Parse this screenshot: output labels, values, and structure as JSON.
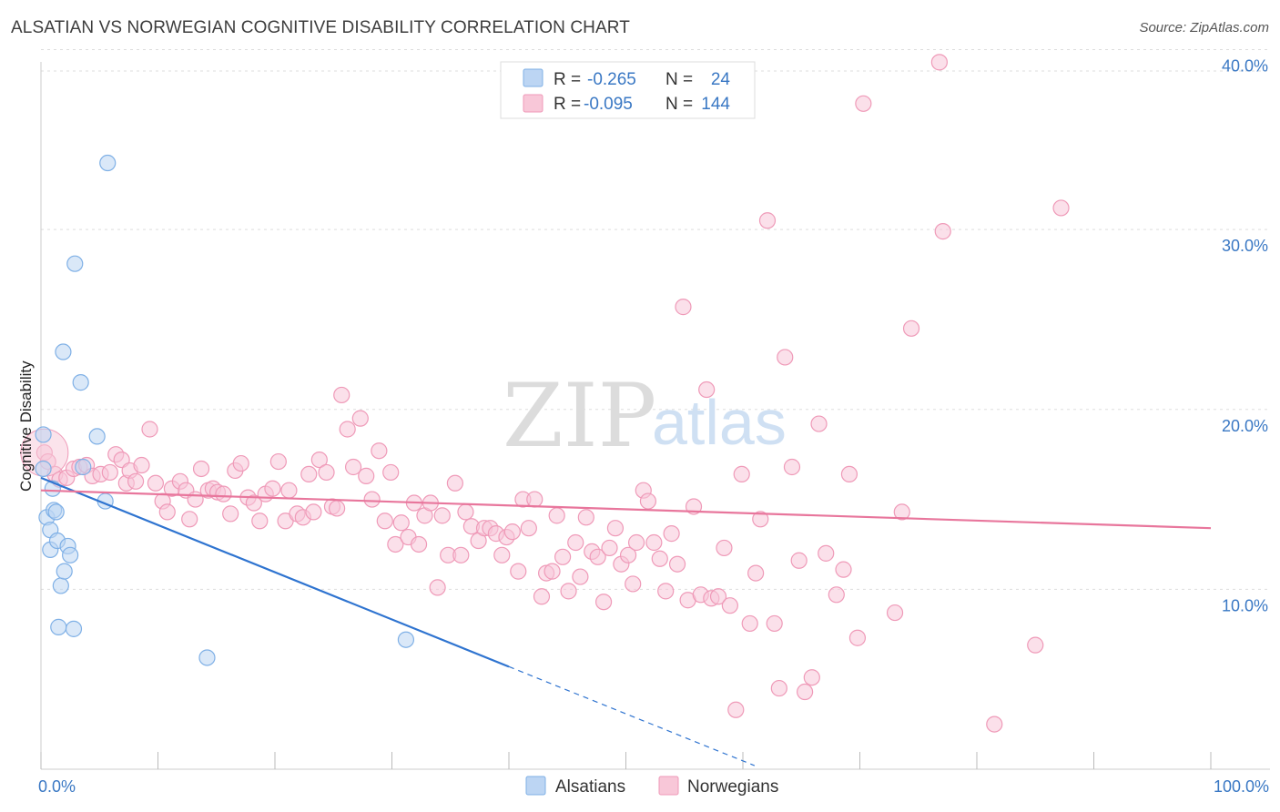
{
  "title": "ALSATIAN VS NORWEGIAN COGNITIVE DISABILITY CORRELATION CHART",
  "source": "Source: ZipAtlas.com",
  "watermark": {
    "zip": "ZIP",
    "atlas": "atlas"
  },
  "chart_data": {
    "type": "scatter",
    "xlabel": "",
    "ylabel": "Cognitive Disability",
    "xlim": [
      0,
      100
    ],
    "ylim": [
      0,
      42
    ],
    "x_tick_labels": {
      "min": "0.0%",
      "max": "100.0%"
    },
    "y_ticks": [
      {
        "value": 10,
        "label": "10.0%"
      },
      {
        "value": 20,
        "label": "20.0%"
      },
      {
        "value": 30,
        "label": "30.0%"
      },
      {
        "value": 40,
        "label": "40.0%"
      }
    ],
    "legend": [
      {
        "name": "Alsatians",
        "R_label": "R =",
        "R": "-0.265",
        "N_label": "N =",
        "N": "24",
        "color": "#7fb0e6",
        "fill": "#bcd5f3"
      },
      {
        "name": "Norwegians",
        "R_label": "R =",
        "R": "-0.095",
        "N_label": "N =",
        "N": "144",
        "color": "#ef9ab8",
        "fill": "#f8c7d8"
      }
    ],
    "series": [
      {
        "name": "Alsatians",
        "color": "#7fb0e6",
        "trend": {
          "x0": 0,
          "y0": 16.2,
          "x1": 40,
          "y1": 5.7,
          "dash_x1": 61,
          "dash_y1": 0.2,
          "color": "#2f74d0"
        },
        "points": [
          [
            0.2,
            18.6
          ],
          [
            0.2,
            16.7
          ],
          [
            0.5,
            14.0
          ],
          [
            0.8,
            12.2
          ],
          [
            0.8,
            13.3
          ],
          [
            1.0,
            15.6
          ],
          [
            1.1,
            14.4
          ],
          [
            1.3,
            14.3
          ],
          [
            1.4,
            12.7
          ],
          [
            1.5,
            7.9
          ],
          [
            1.7,
            10.2
          ],
          [
            1.9,
            23.2
          ],
          [
            2.0,
            11.0
          ],
          [
            2.3,
            12.4
          ],
          [
            2.5,
            11.9
          ],
          [
            2.8,
            7.8
          ],
          [
            2.9,
            28.1
          ],
          [
            3.4,
            21.5
          ],
          [
            3.6,
            16.8
          ],
          [
            4.8,
            18.5
          ],
          [
            5.5,
            14.9
          ],
          [
            5.7,
            33.7
          ],
          [
            14.2,
            6.2
          ],
          [
            31.2,
            7.2
          ]
        ]
      },
      {
        "name": "Norwegians",
        "color": "#ef9ab8",
        "trend": {
          "x0": 0,
          "y0": 15.5,
          "x1": 100,
          "y1": 13.4,
          "color": "#e8769c"
        },
        "points": [
          [
            0.3,
            17.6
          ],
          [
            0.6,
            17.1
          ],
          [
            1.2,
            16.4
          ],
          [
            1.6,
            16.1
          ],
          [
            2.2,
            16.2
          ],
          [
            2.8,
            16.7
          ],
          [
            3.3,
            16.8
          ],
          [
            3.9,
            16.9
          ],
          [
            4.4,
            16.3
          ],
          [
            5.1,
            16.4
          ],
          [
            5.9,
            16.5
          ],
          [
            6.4,
            17.5
          ],
          [
            6.9,
            17.2
          ],
          [
            7.3,
            15.9
          ],
          [
            7.6,
            16.6
          ],
          [
            8.1,
            16.0
          ],
          [
            8.6,
            16.9
          ],
          [
            9.3,
            18.9
          ],
          [
            9.8,
            15.9
          ],
          [
            10.4,
            14.9
          ],
          [
            10.8,
            14.3
          ],
          [
            11.2,
            15.6
          ],
          [
            11.9,
            16.0
          ],
          [
            12.4,
            15.5
          ],
          [
            12.7,
            13.9
          ],
          [
            13.2,
            15.0
          ],
          [
            13.7,
            16.7
          ],
          [
            14.3,
            15.5
          ],
          [
            14.7,
            15.6
          ],
          [
            15.1,
            15.4
          ],
          [
            15.6,
            15.3
          ],
          [
            16.2,
            14.2
          ],
          [
            16.6,
            16.6
          ],
          [
            17.1,
            17.0
          ],
          [
            17.7,
            15.1
          ],
          [
            18.2,
            14.8
          ],
          [
            18.7,
            13.8
          ],
          [
            19.2,
            15.3
          ],
          [
            19.8,
            15.6
          ],
          [
            20.3,
            17.1
          ],
          [
            20.9,
            13.8
          ],
          [
            21.2,
            15.5
          ],
          [
            21.9,
            14.2
          ],
          [
            22.4,
            14.0
          ],
          [
            22.9,
            16.4
          ],
          [
            23.3,
            14.3
          ],
          [
            23.8,
            17.2
          ],
          [
            24.4,
            16.5
          ],
          [
            24.9,
            14.6
          ],
          [
            25.3,
            14.5
          ],
          [
            25.7,
            20.8
          ],
          [
            26.2,
            18.9
          ],
          [
            26.7,
            16.8
          ],
          [
            27.3,
            19.5
          ],
          [
            27.8,
            16.3
          ],
          [
            28.3,
            15.0
          ],
          [
            28.9,
            17.7
          ],
          [
            29.4,
            13.8
          ],
          [
            29.9,
            16.5
          ],
          [
            30.3,
            12.5
          ],
          [
            30.8,
            13.7
          ],
          [
            31.4,
            12.9
          ],
          [
            31.9,
            14.8
          ],
          [
            32.3,
            12.5
          ],
          [
            32.8,
            14.1
          ],
          [
            33.3,
            14.8
          ],
          [
            33.9,
            10.1
          ],
          [
            34.3,
            14.1
          ],
          [
            34.8,
            11.9
          ],
          [
            35.4,
            15.9
          ],
          [
            35.9,
            11.9
          ],
          [
            36.3,
            14.3
          ],
          [
            36.8,
            13.5
          ],
          [
            37.4,
            12.7
          ],
          [
            37.9,
            13.4
          ],
          [
            38.4,
            13.4
          ],
          [
            38.9,
            13.1
          ],
          [
            39.4,
            11.9
          ],
          [
            39.8,
            12.9
          ],
          [
            40.3,
            13.2
          ],
          [
            40.8,
            11.0
          ],
          [
            41.2,
            15.0
          ],
          [
            41.7,
            13.4
          ],
          [
            42.2,
            15.0
          ],
          [
            42.8,
            9.6
          ],
          [
            43.2,
            10.9
          ],
          [
            43.7,
            11.0
          ],
          [
            44.1,
            14.1
          ],
          [
            44.6,
            11.8
          ],
          [
            45.1,
            9.9
          ],
          [
            45.7,
            12.6
          ],
          [
            46.1,
            10.7
          ],
          [
            46.6,
            14.0
          ],
          [
            47.1,
            12.1
          ],
          [
            47.6,
            11.8
          ],
          [
            48.1,
            9.3
          ],
          [
            48.6,
            12.3
          ],
          [
            49.1,
            13.4
          ],
          [
            49.6,
            11.4
          ],
          [
            50.2,
            11.9
          ],
          [
            50.6,
            10.3
          ],
          [
            50.9,
            12.6
          ],
          [
            51.5,
            15.5
          ],
          [
            51.9,
            14.9
          ],
          [
            52.4,
            12.6
          ],
          [
            52.9,
            11.7
          ],
          [
            53.4,
            9.9
          ],
          [
            53.9,
            13.1
          ],
          [
            54.4,
            11.4
          ],
          [
            54.9,
            25.7
          ],
          [
            55.3,
            9.4
          ],
          [
            55.8,
            14.6
          ],
          [
            56.4,
            9.7
          ],
          [
            56.9,
            21.1
          ],
          [
            57.3,
            9.5
          ],
          [
            57.9,
            9.6
          ],
          [
            58.4,
            12.3
          ],
          [
            58.9,
            9.1
          ],
          [
            59.4,
            3.3
          ],
          [
            59.9,
            16.4
          ],
          [
            60.6,
            8.1
          ],
          [
            61.1,
            10.9
          ],
          [
            61.5,
            13.9
          ],
          [
            62.1,
            30.5
          ],
          [
            62.7,
            8.1
          ],
          [
            63.1,
            4.5
          ],
          [
            63.6,
            22.9
          ],
          [
            64.2,
            16.8
          ],
          [
            64.8,
            11.6
          ],
          [
            65.3,
            4.3
          ],
          [
            65.9,
            5.1
          ],
          [
            66.5,
            19.2
          ],
          [
            67.1,
            12.0
          ],
          [
            68.0,
            9.7
          ],
          [
            68.6,
            11.1
          ],
          [
            69.1,
            16.4
          ],
          [
            69.8,
            7.3
          ],
          [
            73.0,
            8.7
          ],
          [
            73.6,
            14.3
          ],
          [
            74.4,
            24.5
          ],
          [
            76.8,
            39.3
          ],
          [
            77.1,
            29.9
          ],
          [
            81.5,
            2.5
          ],
          [
            85.0,
            6.9
          ],
          [
            87.2,
            31.2
          ],
          [
            70.3,
            37.0
          ]
        ]
      }
    ]
  }
}
